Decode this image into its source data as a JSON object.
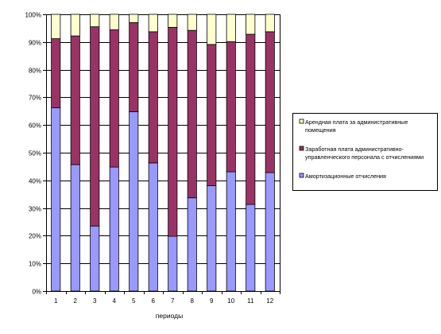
{
  "chart_data": {
    "type": "bar",
    "stacked": "percent",
    "categories": [
      "1",
      "2",
      "3",
      "4",
      "5",
      "6",
      "7",
      "8",
      "9",
      "10",
      "11",
      "12"
    ],
    "series": [
      {
        "name": "Амортизационные отчисления",
        "color": "#9999ff",
        "values": [
          66.2,
          45.7,
          23.5,
          44.8,
          64.8,
          46.3,
          19.8,
          33.7,
          38.1,
          43.1,
          31.3,
          42.8
        ]
      },
      {
        "name": "Заработная плата административно-управленческого персонала с отчислениями",
        "color": "#993366",
        "values": [
          25.0,
          46.5,
          72.0,
          49.6,
          32.2,
          47.4,
          75.5,
          60.5,
          51.0,
          47.0,
          61.5,
          50.9
        ]
      },
      {
        "name": "Арендная плата за административные помещения",
        "color": "#ffffcc",
        "values": [
          8.8,
          7.8,
          4.5,
          5.6,
          3.0,
          6.3,
          4.7,
          5.8,
          10.9,
          9.9,
          7.2,
          6.3
        ]
      }
    ],
    "yticks": [
      "0%",
      "10%",
      "20%",
      "30%",
      "40%",
      "50%",
      "60%",
      "70%",
      "80%",
      "90%",
      "100%"
    ],
    "ylim": [
      0,
      100
    ],
    "xlabel": "периоды",
    "ylabel": "",
    "grid": true,
    "legend_position": "right",
    "legend": [
      {
        "lines": [
          "Арендная плата за административные",
          "помещения"
        ],
        "color": "#ffffcc"
      },
      {
        "lines": [
          "Заработная плата административно-",
          "управленческого персонала с отчислениями"
        ],
        "color": "#993366"
      },
      {
        "lines": [
          "Амортизационные отчисления"
        ],
        "color": "#9999ff"
      }
    ]
  }
}
